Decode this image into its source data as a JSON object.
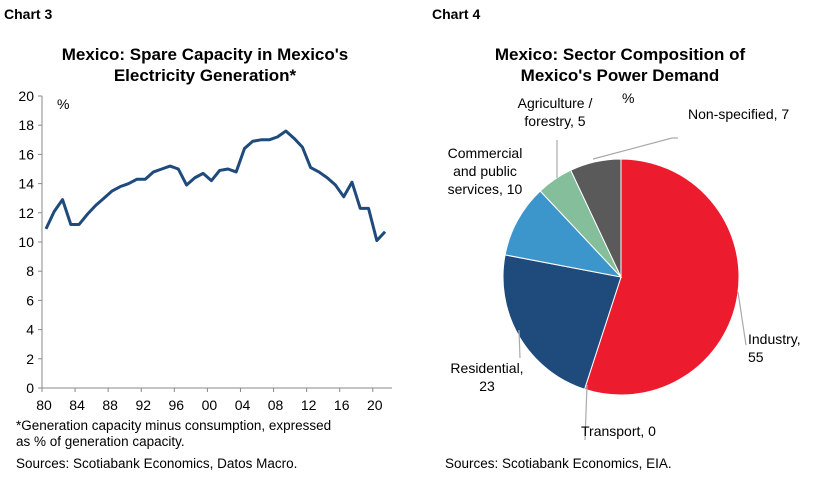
{
  "chart_data": [
    {
      "type": "line",
      "label": "Chart 3",
      "title": "Mexico: Spare Capacity in Mexico's Electricity Generation*",
      "ylabel": "%",
      "ylim": [
        0,
        20
      ],
      "yticks": [
        0,
        2,
        4,
        6,
        8,
        10,
        12,
        14,
        16,
        18,
        20
      ],
      "xticks": [
        "80",
        "84",
        "88",
        "92",
        "96",
        "00",
        "04",
        "08",
        "12",
        "16",
        "20"
      ],
      "xtick_years": [
        1980,
        1984,
        1988,
        1992,
        1996,
        2000,
        2004,
        2008,
        2012,
        2016,
        2020
      ],
      "x": [
        1980,
        1981,
        1982,
        1983,
        1984,
        1985,
        1986,
        1987,
        1988,
        1989,
        1990,
        1991,
        1992,
        1993,
        1994,
        1995,
        1996,
        1997,
        1998,
        1999,
        2000,
        2001,
        2002,
        2003,
        2004,
        2005,
        2006,
        2007,
        2008,
        2009,
        2010,
        2011,
        2012,
        2013,
        2014,
        2015,
        2016,
        2017,
        2018,
        2019,
        2020,
        2021
      ],
      "values": [
        10.9,
        12.1,
        12.9,
        11.2,
        11.2,
        11.9,
        12.5,
        13.0,
        13.5,
        13.8,
        14.0,
        14.3,
        14.3,
        14.8,
        15.0,
        15.2,
        15.0,
        13.9,
        14.4,
        14.7,
        14.2,
        14.9,
        15.0,
        14.8,
        16.4,
        16.9,
        17.0,
        17.0,
        17.2,
        17.6,
        17.1,
        16.5,
        15.1,
        14.8,
        14.4,
        13.9,
        13.1,
        14.1,
        12.3,
        12.3,
        10.1,
        10.7
      ],
      "line_color": "#1f4a7c",
      "grid": false,
      "footnote": [
        "*Generation capacity minus consumption, expressed",
        "as % of generation capacity."
      ],
      "source": "Sources: Scotiabank Economics, Datos Macro."
    },
    {
      "type": "pie",
      "label": "Chart 4",
      "title": "Mexico: Sector Composition of Mexico's Power Demand",
      "unit": "%",
      "slices": [
        {
          "name": "Industry",
          "value": 55,
          "color": "#ec1c2e",
          "label": [
            "Industry,",
            "55"
          ]
        },
        {
          "name": "Transport",
          "value": 0,
          "color": "#999999",
          "label": [
            "Transport, 0"
          ]
        },
        {
          "name": "Residential",
          "value": 23,
          "color": "#1f4a7c",
          "label": [
            "Residential,",
            "23"
          ]
        },
        {
          "name": "Commercial and public services",
          "value": 10,
          "color": "#3d96cb",
          "label": [
            "Commercial",
            "and public",
            "services, 10"
          ]
        },
        {
          "name": "Agriculture / forestry",
          "value": 5,
          "color": "#84be9a",
          "label": [
            "Agriculture /",
            "forestry, 5"
          ]
        },
        {
          "name": "Non-specified",
          "value": 7,
          "color": "#5a5a5a",
          "label": [
            "Non-specified, 7"
          ]
        }
      ],
      "source": "Sources: Scotiabank Economics, EIA."
    }
  ]
}
